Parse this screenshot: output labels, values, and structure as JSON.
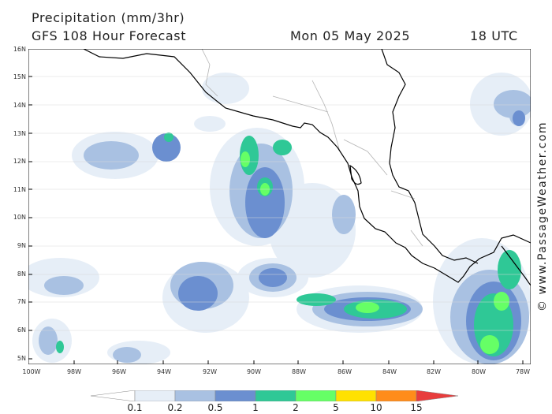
{
  "header": {
    "title": "Precipitation (mm/3hr)",
    "subtitle": "GFS 108 Hour Forecast",
    "datetime": "Mon 05 May 2025",
    "hour": "18 UTC"
  },
  "axes": {
    "lat_labels": [
      "16N",
      "15N",
      "14N",
      "13N",
      "12N",
      "11N",
      "10N",
      "9N",
      "8N",
      "7N",
      "6N",
      "5N"
    ],
    "lon_labels": [
      "100W",
      "98W",
      "96W",
      "94W",
      "92W",
      "90W",
      "88W",
      "86W",
      "84W",
      "82W",
      "80W",
      "78W"
    ]
  },
  "legend": {
    "labels": [
      "0.1",
      "0.2",
      "0.5",
      "1",
      "2",
      "5",
      "10",
      "15"
    ],
    "colors": [
      "#ffffff",
      "#e6eef7",
      "#a9c1e2",
      "#6b8fd0",
      "#2fc896",
      "#66ff66",
      "#ffe100",
      "#ff8c1a",
      "#e83c3c"
    ]
  },
  "credit": "© www.PassageWeather.com",
  "colors": {
    "land": "#ffffff",
    "coast": "#000000",
    "border": "#b4b4b4",
    "precip_light": "#e6eef7",
    "precip_low": "#a9c1e2",
    "precip_mid": "#6b8fd0",
    "precip_moderate": "#2fc896",
    "precip_high": "#66ff66"
  }
}
